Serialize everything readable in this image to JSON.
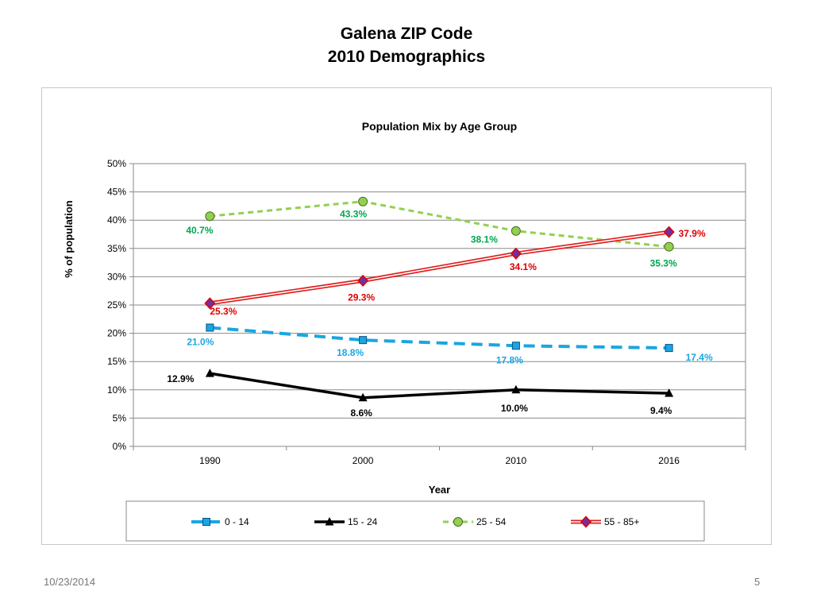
{
  "slide": {
    "title_line1": "Galena ZIP Code",
    "title_line2": "2010 Demographics",
    "date": "10/23/2014",
    "page_number": "5"
  },
  "chart_data": {
    "type": "line",
    "title": "Population Mix by Age Group",
    "xlabel": "Year",
    "ylabel": "% of  population",
    "categories": [
      "1990",
      "2000",
      "2010",
      "2016"
    ],
    "ylim": [
      0,
      50
    ],
    "yticks": [
      "0%",
      "5%",
      "10%",
      "15%",
      "20%",
      "25%",
      "30%",
      "35%",
      "40%",
      "45%",
      "50%"
    ],
    "grid": true,
    "legend_position": "bottom",
    "series": [
      {
        "name": "0 - 14",
        "values": [
          21.0,
          18.8,
          17.8,
          17.4
        ],
        "labels": [
          "21.0%",
          "18.8%",
          "17.8%",
          "17.4%"
        ],
        "color": "#1AA6DF",
        "label_color": "#1AA6DF",
        "marker": "square",
        "line_style": "dashed-thick"
      },
      {
        "name": "15 - 24",
        "values": [
          12.9,
          8.6,
          10.0,
          9.4
        ],
        "labels": [
          "12.9%",
          "8.6%",
          "10.0%",
          "9.4%"
        ],
        "color": "#000000",
        "label_color": "#000000",
        "marker": "triangle",
        "line_style": "solid-thick"
      },
      {
        "name": "25 - 54",
        "values": [
          40.7,
          43.3,
          38.1,
          35.3
        ],
        "labels": [
          "40.7%",
          "43.3%",
          "38.1%",
          "35.3%"
        ],
        "color": "#92D050",
        "label_color": "#00A651",
        "marker": "circle",
        "line_style": "dashed"
      },
      {
        "name": "55 - 85+",
        "values": [
          25.3,
          29.3,
          34.1,
          37.9
        ],
        "labels": [
          "25.3%",
          "29.3%",
          "34.1%",
          "37.9%"
        ],
        "color": "#E02020",
        "label_color": "#E00000",
        "marker": "diamond",
        "line_style": "double"
      }
    ]
  }
}
